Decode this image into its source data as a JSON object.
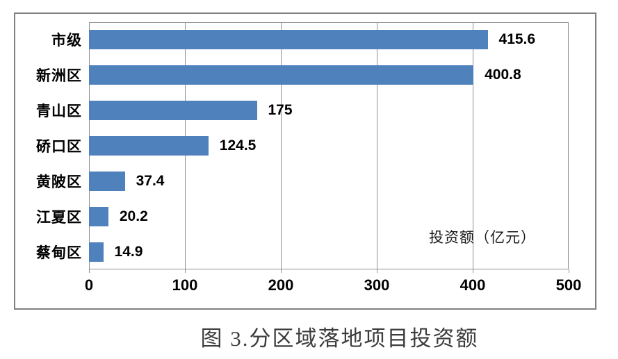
{
  "chart_data": {
    "type": "bar",
    "orientation": "horizontal",
    "title": "图 3.分区域落地项目投资额",
    "series_label": "投资额（亿元）",
    "categories": [
      "市级",
      "新洲区",
      "青山区",
      "硚口区",
      "黄陂区",
      "江夏区",
      "蔡甸区"
    ],
    "values": [
      415.6,
      400.8,
      175,
      124.5,
      37.4,
      20.2,
      14.9
    ],
    "value_labels": [
      "415.6",
      "400.8",
      "175",
      "124.5",
      "37.4",
      "20.2",
      "14.9"
    ],
    "xlim": [
      0,
      500
    ],
    "x_ticks": [
      0,
      100,
      200,
      300,
      400,
      500
    ],
    "x_tick_labels": [
      "0",
      "100",
      "200",
      "300",
      "400",
      "500"
    ],
    "grid": true,
    "legend_position": "inside-lower-right",
    "bar_color": "#4f81bd"
  },
  "colors": {
    "bar": "#4f81bd",
    "grid": "#8f8f8f",
    "frame_border": "#7f7f7f",
    "text": "#000000",
    "title_text": "#3d3d3d"
  }
}
